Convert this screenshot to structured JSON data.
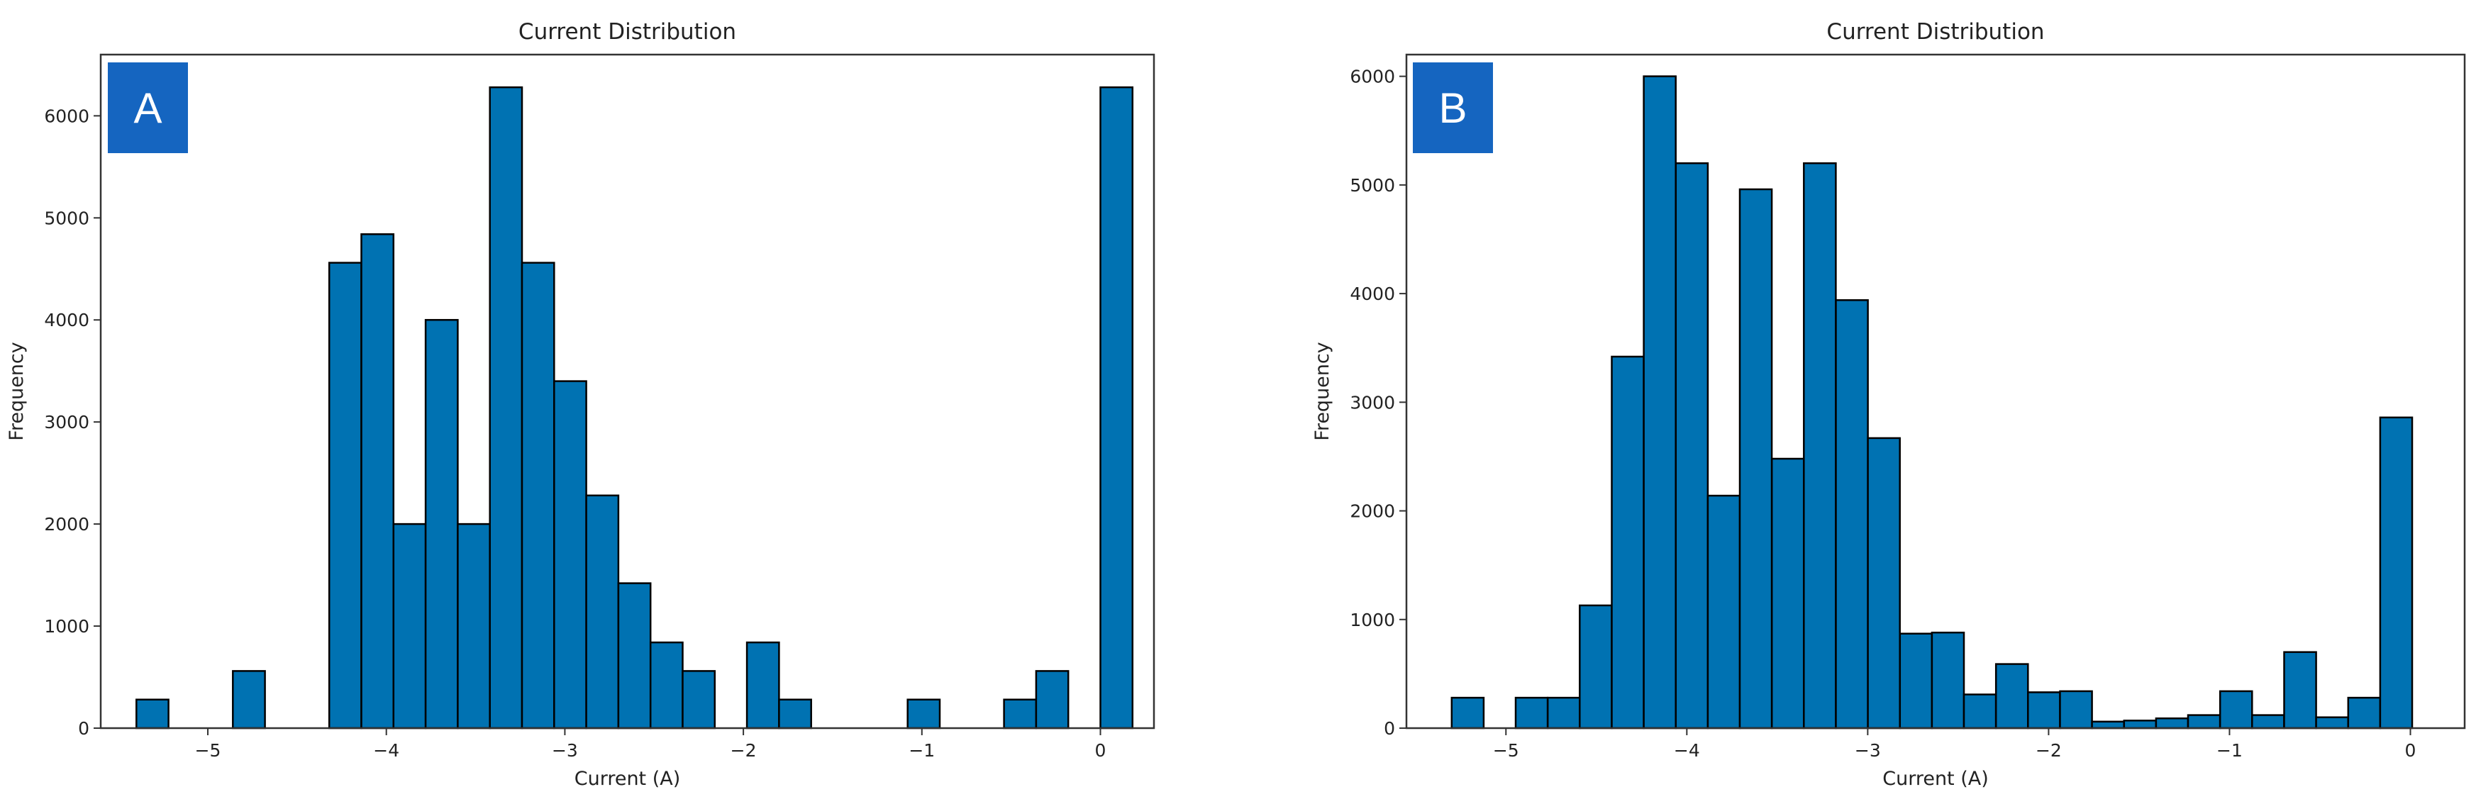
{
  "colors": {
    "bar": "#0072b2",
    "edge": "#000000",
    "badge": "#1565c0",
    "badge_text": "#ffffff"
  },
  "chart_data": [
    {
      "type": "bar",
      "panel_label": "A",
      "title": "Current Distribution",
      "xlabel": "Current (A)",
      "ylabel": "Frequency",
      "xlim": [
        -5.6,
        0.3
      ],
      "ylim": [
        0,
        6600
      ],
      "xticks": [
        -5,
        -4,
        -3,
        -2,
        -1,
        0
      ],
      "xtick_labels": [
        "−5",
        "−4",
        "−3",
        "−2",
        "−1",
        "0"
      ],
      "yticks": [
        0,
        1000,
        2000,
        3000,
        4000,
        5000,
        6000
      ],
      "ytick_labels": [
        "0",
        "1000",
        "2000",
        "3000",
        "4000",
        "5000",
        "6000"
      ],
      "grid": false,
      "bin_start": -5.4,
      "bin_width": 0.18,
      "values": [
        280,
        0,
        0,
        560,
        0,
        0,
        4560,
        4840,
        2000,
        4000,
        2000,
        6280,
        4560,
        3400,
        2280,
        1420,
        840,
        560,
        0,
        840,
        280,
        0,
        0,
        0,
        280,
        0,
        0,
        280,
        560,
        0,
        6280
      ]
    },
    {
      "type": "bar",
      "panel_label": "B",
      "title": "Current Distribution",
      "xlabel": "Current (A)",
      "ylabel": "Frequency",
      "xlim": [
        -5.55,
        0.3
      ],
      "ylim": [
        0,
        6200
      ],
      "xticks": [
        -5,
        -4,
        -3,
        -2,
        -1,
        0
      ],
      "xtick_labels": [
        "−5",
        "−4",
        "−3",
        "−2",
        "−1",
        "0"
      ],
      "yticks": [
        0,
        1000,
        2000,
        3000,
        4000,
        5000,
        6000
      ],
      "ytick_labels": [
        "0",
        "1000",
        "2000",
        "3000",
        "4000",
        "5000",
        "6000"
      ],
      "grid": false,
      "bin_start": -5.3,
      "bin_width": 0.177,
      "values": [
        280,
        0,
        280,
        280,
        1130,
        3420,
        6000,
        5200,
        2140,
        4960,
        2480,
        5200,
        3940,
        2670,
        870,
        880,
        310,
        590,
        330,
        340,
        60,
        70,
        90,
        120,
        340,
        120,
        700,
        100,
        280,
        2860
      ]
    }
  ]
}
